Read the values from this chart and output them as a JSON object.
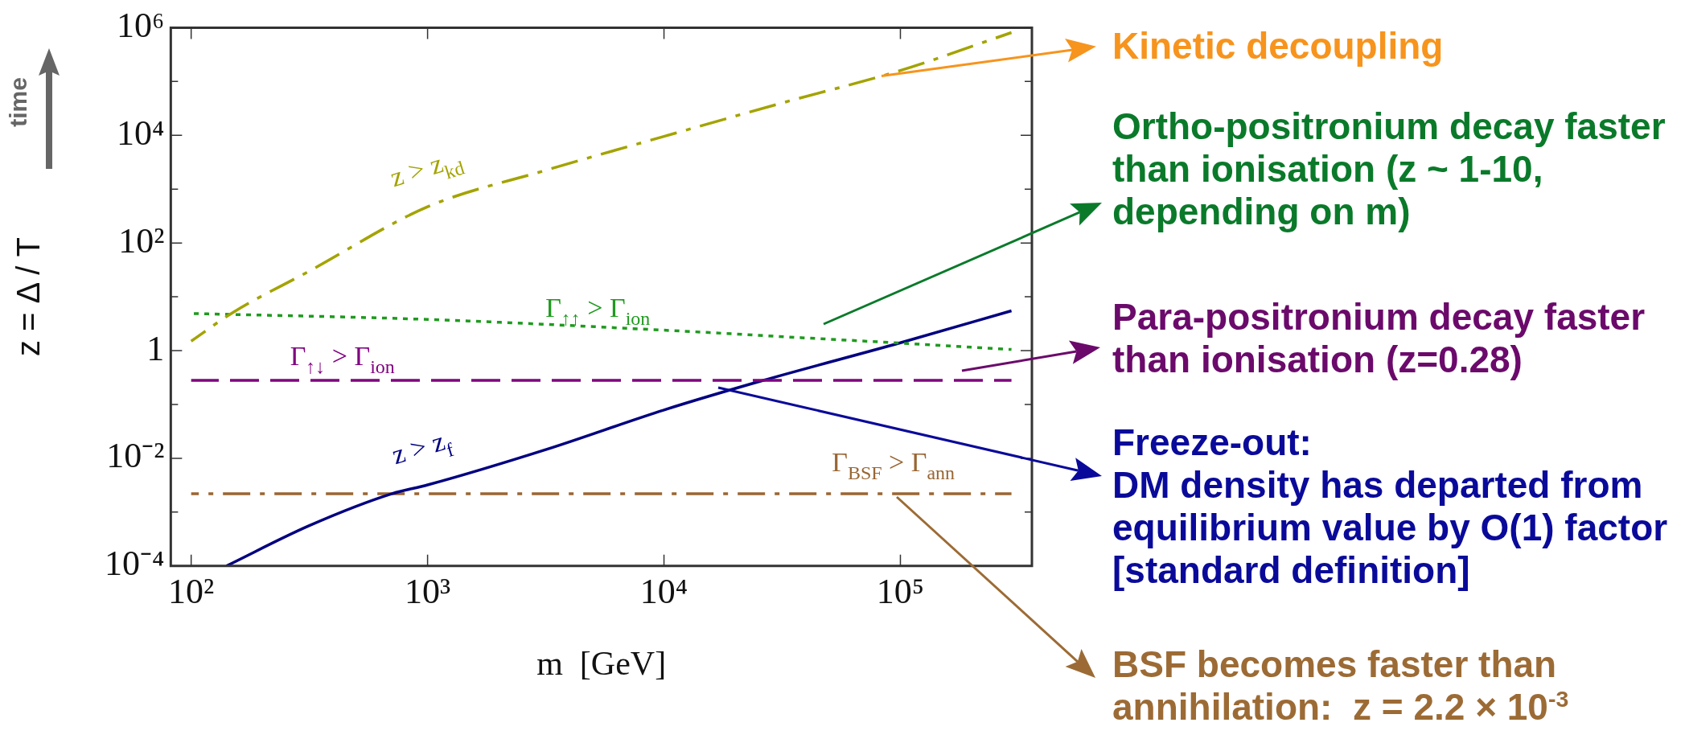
{
  "chart_data": {
    "type": "line",
    "xlabel": "m  [GeV]",
    "ylabel": "z = Δ / T",
    "log": "xy",
    "grid": false,
    "legend": false,
    "marker": "none",
    "xlim": [
      82,
      360000
    ],
    "ylim": [
      0.0001,
      1000000
    ],
    "xticks": [
      {
        "value": 100,
        "label": "10²"
      },
      {
        "value": 1000,
        "label": "10³"
      },
      {
        "value": 10000,
        "label": "10⁴"
      },
      {
        "value": 100000,
        "label": "10⁵"
      }
    ],
    "yticks": [
      {
        "value": 0.0001,
        "label": "10⁻⁴"
      },
      {
        "value": 0.001,
        "label": null
      },
      {
        "value": 0.01,
        "label": "10⁻²"
      },
      {
        "value": 0.1,
        "label": null
      },
      {
        "value": 1,
        "label": "1"
      },
      {
        "value": 10,
        "label": null
      },
      {
        "value": 100,
        "label": "10²"
      },
      {
        "value": 1000,
        "label": null
      },
      {
        "value": 10000,
        "label": "10⁴"
      },
      {
        "value": 100000,
        "label": null
      },
      {
        "value": 1000000,
        "label": "10⁶"
      }
    ],
    "series": [
      {
        "name": "z > z$_{kd}$",
        "color": "#a3a300",
        "line_style": "dashdot",
        "x": [
          100,
          150,
          316,
          1000,
          3162,
          10000,
          31620,
          100000,
          295000
        ],
        "values": [
          1.5,
          5.1,
          30,
          470,
          2240,
          9550,
          40000,
          160000,
          810000
        ]
      },
      {
        "name": "Γ$_{↑↑}$ > Γ$_{ion}$",
        "color": "#1f9a1f",
        "line_style": "dotted",
        "x": [
          100,
          1000,
          10000,
          38000,
          100000,
          295000
        ],
        "values": [
          4.9,
          3.8,
          2.4,
          1.74,
          1.38,
          1.05
        ]
      },
      {
        "name": "Γ$_{↑↓}$ > Γ$_{ion}$",
        "color": "#800080",
        "line_style": "dashed",
        "x": [
          100,
          295000
        ],
        "values": [
          0.28,
          0.28
        ]
      },
      {
        "name": "z > z$_{f}$",
        "color": "#000080",
        "line_style": "solid",
        "x": [
          141,
          316,
          708,
          1000,
          3162,
          10000,
          26300,
          100000,
          295000
        ],
        "values": [
          0.0001,
          0.00056,
          0.0022,
          0.0032,
          0.0145,
          0.079,
          0.28,
          1.4,
          5.5
        ]
      },
      {
        "name": "Γ$_{BSF}$ > Γ$_{ann}$",
        "color": "#996633",
        "line_style": "dashdot",
        "x": [
          100,
          295000
        ],
        "values": [
          0.0022,
          0.0022
        ]
      }
    ],
    "annotations": [
      {
        "text": "Kinetic decoupling",
        "x": 83000,
        "y": 126000
      },
      "Ortho-positronium decay faster than ionisation (z ~ 1-10, depending on m)",
      "Para-positronium decay faster than ionisation (z=0.28)",
      "Freeze-out:\nDM density has departed from equilibrium value by O(1) factor [standard definition]",
      "BSF becomes faster than annihilation:  z = 2.2 × 10$^{-3}$",
      "time"
    ]
  }
}
